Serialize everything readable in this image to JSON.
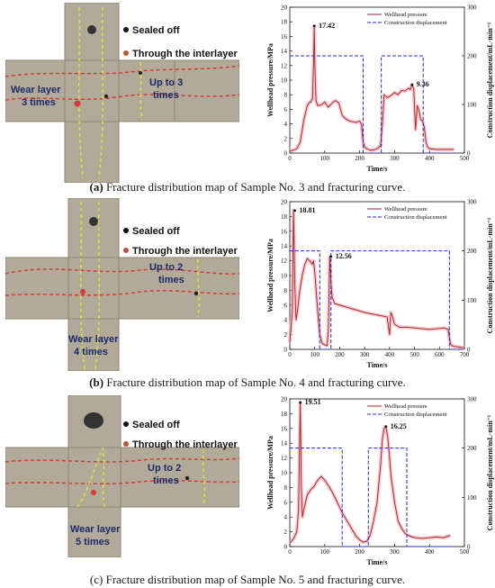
{
  "panels": [
    {
      "specimen": {
        "legend_black": "Sealed off",
        "legend_red": "Through the interlayer",
        "left_text": [
          "Wear layer",
          "3 times"
        ],
        "right_text": [
          "Up to 3",
          "times"
        ]
      },
      "caption": {
        "letter": "(a)",
        "text": " Fracture distribution map of Sample No. 3 and fracturing curve."
      }
    },
    {
      "specimen": {
        "legend_black": "Sealed off",
        "legend_red": "Through the interlayer",
        "left_text": [
          "Wear layer",
          "4 times"
        ],
        "right_text": [
          "Up to 2",
          "times"
        ]
      },
      "caption": {
        "letter": "(b)",
        "text": " Fracture distribution map of Sample No. 4 and fracturing curve."
      }
    },
    {
      "specimen": {
        "legend_black": "Sealed off",
        "legend_red": "Through the interlayer",
        "left_text": [
          "Wear layer",
          "5 times"
        ],
        "right_text": [
          "Up to 2",
          "times"
        ]
      },
      "caption": {
        "letter": "(c)",
        "text": " Fracture distribution map of Sample No. 5 and fracturing curve."
      }
    }
  ],
  "colors": {
    "pressure_line": "#a3231c",
    "pressure_shadow": "#f4b8c4",
    "displacement_line": "#1d2fd6",
    "rock": "#b1aa98",
    "rock_dark": "#8d8675",
    "fracture_red": "#d83a3a",
    "fracture_yellow": "#e8e03a",
    "label_blue": "#1c2a6b"
  },
  "chart_data": [
    {
      "type": "line",
      "xlabel": "Time/s",
      "ylabel_left": "Wellhead pressure/MPa",
      "ylabel_right": "Construction displacement/mL·min⁻¹",
      "xlim": [
        0,
        500
      ],
      "ylim_left": [
        0,
        20
      ],
      "ylim_right": [
        0,
        300
      ],
      "xticks": [
        0,
        100,
        200,
        300,
        400,
        500
      ],
      "yticks_left": [
        0,
        2,
        4,
        6,
        8,
        10,
        12,
        14,
        16,
        18,
        20
      ],
      "yticks_right": [
        0,
        100,
        200,
        300
      ],
      "legend": [
        "Wellhead pressure",
        "Construction displacement"
      ],
      "legend_position": "top-right",
      "annotations": [
        {
          "text": "17.42",
          "x": 70,
          "y": 17.42
        },
        {
          "text": "9.36",
          "x": 350,
          "y": 9.36
        }
      ],
      "series": [
        {
          "name": "Wellhead pressure",
          "axis": "left",
          "x": [
            0,
            10,
            20,
            30,
            40,
            50,
            55,
            60,
            65,
            68,
            70,
            72,
            75,
            80,
            90,
            100,
            110,
            120,
            130,
            140,
            150,
            160,
            170,
            180,
            190,
            200,
            205,
            210,
            215,
            220,
            230,
            240,
            250,
            260,
            265,
            270,
            280,
            290,
            300,
            310,
            320,
            330,
            340,
            345,
            350,
            355,
            360,
            365,
            370,
            375,
            380,
            385,
            390,
            395,
            400,
            420,
            440,
            460,
            470
          ],
          "values": [
            0.3,
            0.4,
            0.6,
            1.5,
            4.5,
            6.5,
            6.9,
            7.0,
            7.5,
            12.0,
            17.42,
            11.5,
            7.2,
            6.5,
            6.6,
            7.0,
            6.3,
            6.8,
            7.2,
            6.9,
            5.2,
            4.7,
            4.4,
            4.3,
            4.2,
            4.4,
            4.0,
            1.5,
            0.8,
            0.6,
            0.4,
            0.4,
            0.6,
            1.0,
            4.0,
            8.0,
            7.6,
            7.9,
            8.3,
            8.0,
            8.6,
            8.5,
            8.9,
            8.7,
            9.36,
            8.8,
            3.2,
            6.5,
            5.8,
            4.6,
            4.4,
            3.6,
            1.5,
            0.8,
            0.6,
            0.5,
            0.5,
            0.5,
            0.5
          ]
        },
        {
          "name": "Construction displacement",
          "axis": "right",
          "x": [
            0,
            210,
            210,
            262,
            262,
            382,
            382,
            470
          ],
          "values": [
            200,
            200,
            0,
            0,
            200,
            200,
            0,
            0
          ]
        }
      ]
    },
    {
      "type": "line",
      "xlabel": "Time/s",
      "ylabel_left": "Wellhead pressure/MPa",
      "ylabel_right": "Construction displacement/mL·min⁻¹",
      "xlim": [
        0,
        700
      ],
      "ylim_left": [
        0,
        20
      ],
      "ylim_right": [
        0,
        300
      ],
      "xticks": [
        0,
        100,
        200,
        300,
        400,
        500,
        600,
        700
      ],
      "yticks_left": [
        0,
        2,
        4,
        6,
        8,
        10,
        12,
        14,
        16,
        18,
        20
      ],
      "yticks_right": [
        0,
        100,
        200,
        300
      ],
      "legend": [
        "Wellhead pressure",
        "Construction displacement"
      ],
      "legend_position": "top-right",
      "annotations": [
        {
          "text": "18.81",
          "x": 20,
          "y": 18.81
        },
        {
          "text": "12.56",
          "x": 165,
          "y": 12.56
        }
      ],
      "series": [
        {
          "name": "Wellhead pressure",
          "axis": "left",
          "x": [
            0,
            10,
            15,
            20,
            25,
            30,
            40,
            50,
            60,
            70,
            80,
            90,
            95,
            100,
            110,
            120,
            130,
            140,
            150,
            155,
            160,
            165,
            170,
            180,
            200,
            220,
            250,
            280,
            300,
            330,
            360,
            390,
            400,
            405,
            410,
            420,
            440,
            470,
            500,
            530,
            560,
            590,
            620,
            635,
            640,
            645,
            650,
            660,
            680,
            700
          ],
          "values": [
            1.0,
            5.0,
            18.81,
            9.0,
            4.0,
            5.0,
            8.0,
            10.0,
            11.5,
            12.3,
            12.0,
            11.5,
            12.0,
            10.5,
            6.0,
            2.0,
            0.8,
            0.6,
            0.5,
            3.0,
            12.56,
            9.0,
            7.0,
            6.2,
            6.0,
            5.8,
            5.5,
            5.2,
            5.0,
            4.8,
            4.6,
            4.4,
            2.0,
            5.0,
            4.6,
            3.4,
            3.0,
            3.0,
            2.9,
            2.8,
            2.7,
            2.8,
            2.9,
            2.7,
            1.5,
            0.7,
            0.5,
            0.4,
            0.3,
            0.2
          ]
        },
        {
          "name": "Construction displacement",
          "axis": "right",
          "x": [
            0,
            120,
            120,
            165,
            165,
            640,
            640,
            700
          ],
          "values": [
            200,
            200,
            0,
            0,
            200,
            200,
            0,
            0
          ]
        }
      ]
    },
    {
      "type": "line",
      "xlabel": "Time/s",
      "ylabel_left": "Wellhead pressure/MPa",
      "ylabel_right": "Construction displacement/mL·min⁻¹",
      "xlim": [
        0,
        500
      ],
      "ylim_left": [
        0,
        20
      ],
      "ylim_right": [
        0,
        300
      ],
      "xticks": [
        0,
        100,
        200,
        300,
        400,
        500
      ],
      "yticks_left": [
        0,
        2,
        4,
        6,
        8,
        10,
        12,
        14,
        16,
        18,
        20
      ],
      "yticks_right": [
        0,
        100,
        200,
        300
      ],
      "legend": [
        "Wellhead pressure",
        "Construction displacement"
      ],
      "legend_position": "top-right",
      "annotations": [
        {
          "text": "19.51",
          "x": 30,
          "y": 19.51
        },
        {
          "text": "16.25",
          "x": 275,
          "y": 16.25
        }
      ],
      "series": [
        {
          "name": "Wellhead pressure",
          "axis": "left",
          "x": [
            0,
            10,
            20,
            25,
            30,
            33,
            36,
            40,
            50,
            60,
            70,
            80,
            90,
            100,
            110,
            120,
            130,
            140,
            150,
            160,
            170,
            180,
            190,
            200,
            210,
            220,
            230,
            240,
            250,
            260,
            265,
            270,
            275,
            280,
            285,
            290,
            300,
            310,
            320,
            330,
            340,
            350,
            360,
            380,
            400,
            420,
            440,
            460
          ],
          "values": [
            0.5,
            1.0,
            2.0,
            5.0,
            19.51,
            8.0,
            4.0,
            5.0,
            7.0,
            7.7,
            8.2,
            9.0,
            9.5,
            9.0,
            8.3,
            7.5,
            6.6,
            5.6,
            4.6,
            3.8,
            3.0,
            2.2,
            1.4,
            0.9,
            0.6,
            0.7,
            1.5,
            3.5,
            6.0,
            11.0,
            14.5,
            16.0,
            16.25,
            15.0,
            12.5,
            9.5,
            6.0,
            3.5,
            2.5,
            1.8,
            1.5,
            1.3,
            1.2,
            1.1,
            1.2,
            1.3,
            1.2,
            1.5
          ]
        },
        {
          "name": "Construction displacement",
          "axis": "right",
          "x": [
            0,
            150,
            150,
            225,
            225,
            335,
            335,
            460
          ],
          "values": [
            200,
            200,
            0,
            0,
            200,
            200,
            0,
            0
          ]
        }
      ]
    }
  ]
}
